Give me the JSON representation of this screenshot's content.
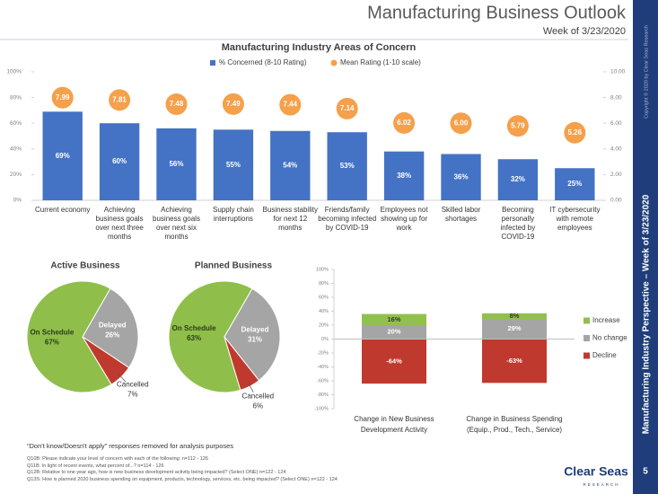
{
  "header": {
    "title": "Manufacturing Business Outlook",
    "subtitle": "Week of 3/23/2020"
  },
  "sidebar": {
    "title": "Manufacturing Industry Perspective – Week of 3/23/2020",
    "copyright": "Copyright © 2020 by Clear Seas Research",
    "page": "5"
  },
  "footer": {
    "note": "“Don't know/Doesn't apply” responses removed for analysis purposes",
    "questions": [
      "Q10B: Please indicate your level of concern with each of the following: n=112 - 126",
      "Q11B: In light of recent events, what percent of...? n=114 - 126",
      "Q12B: Relative to one year ago, how is new business development activity being impacted? (Select ONE) n=122 - 124",
      "Q13S: How is planned 2020 business spending on equipment, products, technology, services, etc. being impacted? (Select ONE) n=122 - 124"
    ],
    "logo": "Clear Seas",
    "logo_sub": "RESEARCH"
  },
  "chart_data": [
    {
      "type": "bar",
      "title": "Manufacturing Industry Areas of Concern",
      "categories": [
        "Current economy",
        "Achieving business goals over next three months",
        "Achieving business goals over next six months",
        "Supply chain interruptions",
        "Business stability for next 12 months",
        "Friends/family becoming infected by COVID-19",
        "Employees not showing up for work",
        "Skilled labor shortages",
        "Becoming personally infected by COVID-19",
        "IT cybersecurity with remote employees"
      ],
      "series": [
        {
          "name": "% Concerned (8-10 Rating)",
          "type": "bar",
          "color": "#4472c4",
          "values": [
            69,
            60,
            56,
            55,
            54,
            53,
            38,
            36,
            32,
            25
          ],
          "value_labels": [
            "69%",
            "60%",
            "56%",
            "55%",
            "54%",
            "53%",
            "38%",
            "36%",
            "32%",
            "25%"
          ]
        },
        {
          "name": "Mean Rating (1-10 scale)",
          "type": "scatter",
          "axis": "y2",
          "color": "#f5a04a",
          "values": [
            7.99,
            7.81,
            7.48,
            7.49,
            7.44,
            7.14,
            6.02,
            6.0,
            5.79,
            5.26
          ],
          "value_labels": [
            "7.99",
            "7.81",
            "7.48",
            "7.49",
            "7.44",
            "7.14",
            "6.02",
            "6.00",
            "5.79",
            "5.26"
          ]
        }
      ],
      "ylim": [
        0,
        100
      ],
      "yticks": [
        {
          "value": 0,
          "label": "0%"
        },
        {
          "value": 20,
          "label": "20%"
        },
        {
          "value": 40,
          "label": "40%"
        },
        {
          "value": 60,
          "label": "60%"
        },
        {
          "value": 80,
          "label": "80%"
        },
        {
          "value": 100,
          "label": "100%"
        }
      ],
      "y2lim": [
        0,
        10
      ],
      "y2ticks": [
        {
          "value": 0,
          "label": "0.00"
        },
        {
          "value": 2,
          "label": "2.00"
        },
        {
          "value": 4,
          "label": "4.00"
        },
        {
          "value": 6,
          "label": "6.00"
        },
        {
          "value": 8,
          "label": "8.00"
        },
        {
          "value": 10,
          "label": "10.00"
        }
      ]
    },
    {
      "type": "pie",
      "title": "Active Business",
      "categories": [
        "On Schedule",
        "Delayed",
        "Cancelled"
      ],
      "values": [
        67,
        26,
        7
      ],
      "value_labels": [
        "67%",
        "26%",
        "7%"
      ],
      "colors": [
        "#8fbf4a",
        "#a5a5a5",
        "#c0392f"
      ]
    },
    {
      "type": "pie",
      "title": "Planned Business",
      "categories": [
        "On Schedule",
        "Delayed",
        "Cancelled"
      ],
      "values": [
        63,
        31,
        6
      ],
      "value_labels": [
        "63%",
        "31%",
        "6%"
      ],
      "colors": [
        "#8fbf4a",
        "#a5a5a5",
        "#c0392f"
      ]
    },
    {
      "type": "stacked_bar",
      "categories": [
        "Change in New Business Development Activity",
        "Change in Business Spending (Equip., Prod., Tech., Service)"
      ],
      "series": [
        {
          "name": "Increase",
          "color": "#92c04f",
          "values": [
            16,
            8
          ],
          "value_labels": [
            "16%",
            "8%"
          ]
        },
        {
          "name": "No change",
          "color": "#a5a5a5",
          "values": [
            20,
            29
          ],
          "value_labels": [
            "20%",
            "29%"
          ]
        },
        {
          "name": "Decline",
          "color": "#c0392f",
          "values": [
            -64,
            -63
          ],
          "value_labels": [
            "-64%",
            "-63%"
          ]
        }
      ],
      "ylim": [
        -100,
        100
      ],
      "yticks": [
        {
          "value": -100,
          "label": "-100%"
        },
        {
          "value": -80,
          "label": "-80%"
        },
        {
          "value": -60,
          "label": "-60%"
        },
        {
          "value": -40,
          "label": "-40%"
        },
        {
          "value": -20,
          "label": "-20%"
        },
        {
          "value": 0,
          "label": "0%"
        },
        {
          "value": 20,
          "label": "20%"
        },
        {
          "value": 40,
          "label": "40%"
        },
        {
          "value": 60,
          "label": "60%"
        },
        {
          "value": 80,
          "label": "80%"
        },
        {
          "value": 100,
          "label": "100%"
        }
      ],
      "legend": "right"
    }
  ]
}
